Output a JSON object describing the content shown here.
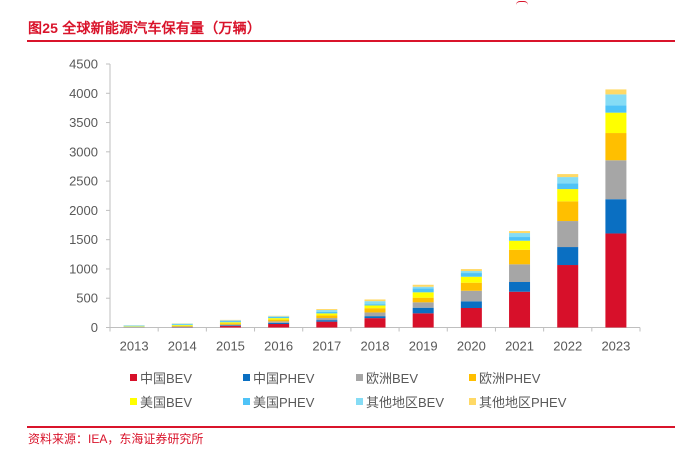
{
  "header": {
    "title": "图25  全球新能源汽车保有量（万辆）"
  },
  "footer": {
    "source": "资料来源：IEA，东海证券研究所"
  },
  "chart_data": {
    "type": "bar",
    "stacked": true,
    "title": "全球新能源汽车保有量（万辆）",
    "xlabel": "",
    "ylabel": "",
    "ylim": [
      0,
      4500
    ],
    "yticks": [
      0,
      500,
      1000,
      1500,
      2000,
      2500,
      3000,
      3500,
      4000,
      4500
    ],
    "grid": false,
    "legend_position": "bottom",
    "categories": [
      "2013",
      "2014",
      "2015",
      "2016",
      "2017",
      "2018",
      "2019",
      "2020",
      "2021",
      "2022",
      "2023"
    ],
    "series": [
      {
        "name": "中国BEV",
        "color": "#d7102a",
        "values": [
          2,
          5,
          25,
          60,
          100,
          160,
          242,
          333,
          611,
          1067,
          1606
        ]
      },
      {
        "name": "中国PHEV",
        "color": "#0a6fc2",
        "values": [
          1,
          3,
          10,
          20,
          26,
          34,
          96,
          114,
          166,
          307,
          585
        ]
      },
      {
        "name": "欧洲BEV",
        "color": "#a6a6a6",
        "values": [
          5,
          8,
          15,
          25,
          35,
          63,
          92,
          181,
          302,
          444,
          665
        ]
      },
      {
        "name": "欧洲PHEV",
        "color": "#ffbf00",
        "values": [
          4,
          10,
          20,
          30,
          45,
          73,
          79,
          137,
          249,
          336,
          465
        ]
      },
      {
        "name": "美国BEV",
        "color": "#ffff00",
        "values": [
          8,
          15,
          20,
          25,
          35,
          46,
          92,
          102,
          154,
          210,
          348
        ]
      },
      {
        "name": "美国PHEV",
        "color": "#4fc3f7",
        "values": [
          10,
          15,
          20,
          20,
          25,
          23,
          68,
          63,
          63,
          97,
          124
        ]
      },
      {
        "name": "其他地区BEV",
        "color": "#85dcf5",
        "values": [
          8,
          10,
          12,
          12,
          32,
          51,
          27,
          34,
          68,
          108,
          188
        ]
      },
      {
        "name": "其他地区PHEV",
        "color": "#ffd966",
        "values": [
          2,
          4,
          8,
          8,
          17,
          29,
          34,
          34,
          34,
          51,
          85
        ]
      }
    ]
  }
}
